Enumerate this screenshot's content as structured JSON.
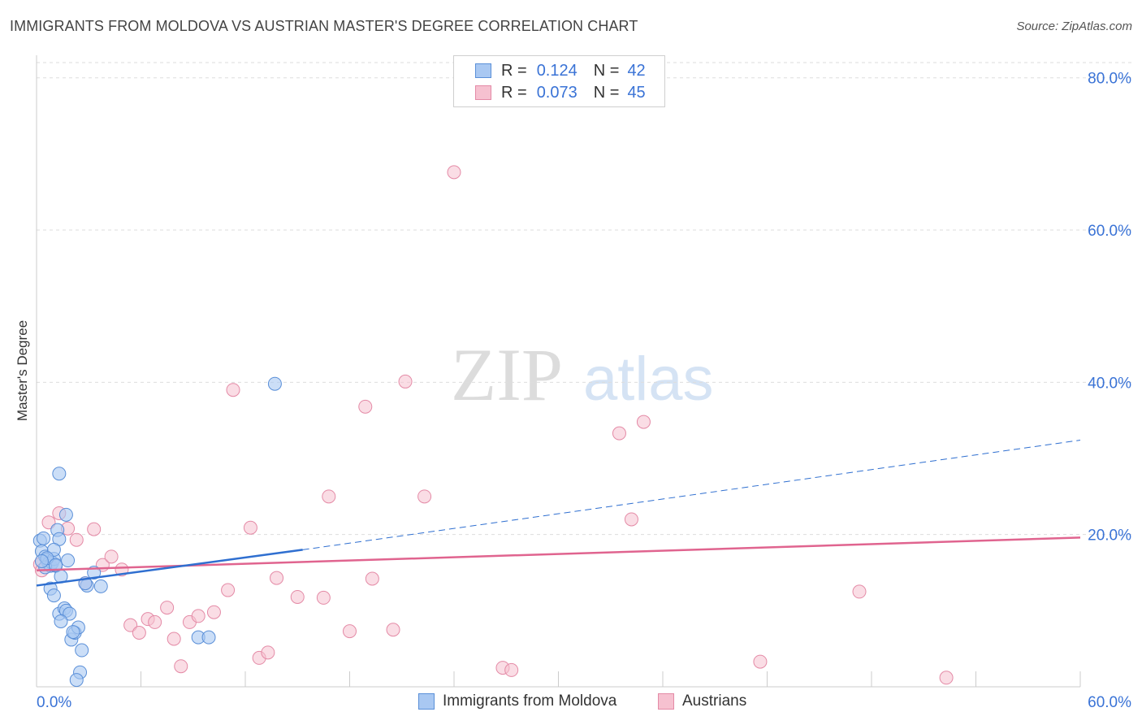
{
  "header": {
    "title": "IMMIGRANTS FROM MOLDOVA VS AUSTRIAN MASTER'S DEGREE CORRELATION CHART",
    "source": "Source: ZipAtlas.com"
  },
  "legend": {
    "rows": [
      {
        "r_label": "R =",
        "r_value": "0.124",
        "n_label": "N =",
        "n_value": "42"
      },
      {
        "r_label": "R =",
        "r_value": "0.073",
        "n_label": "N =",
        "n_value": "45"
      }
    ]
  },
  "bottom_legend": {
    "items": [
      {
        "label": "Immigrants from Moldova"
      },
      {
        "label": "Austrians"
      }
    ]
  },
  "watermark": {
    "zip": "ZIP",
    "atlas": "atlas"
  },
  "colors": {
    "blue_fill": "#a9c8f2",
    "blue_stroke": "#5a8fd8",
    "blue_line": "#2f6fd0",
    "pink_fill": "#f6c1d0",
    "pink_stroke": "#e48aa6",
    "pink_line": "#e0648f",
    "axis_text": "#3a73d6"
  },
  "chart_data": {
    "type": "scatter",
    "title": "IMMIGRANTS FROM MOLDOVA VS AUSTRIAN MASTER'S DEGREE CORRELATION CHART",
    "xlabel": "",
    "ylabel": "Master's Degree",
    "xlim": [
      0,
      60
    ],
    "ylim": [
      0,
      82
    ],
    "x_tick_labels": [
      "0.0%",
      "60.0%"
    ],
    "y_ticks": [
      20,
      40,
      60,
      80
    ],
    "y_tick_labels": [
      "20.0%",
      "40.0%",
      "60.0%",
      "80.0%"
    ],
    "grid": true,
    "legend_position": "top-center",
    "series": [
      {
        "name": "Immigrants from Moldova",
        "R": 0.124,
        "N": 42,
        "points": [
          [
            0.2,
            19.2
          ],
          [
            0.4,
            19.5
          ],
          [
            0.3,
            17.8
          ],
          [
            0.5,
            17.1
          ],
          [
            0.6,
            16.7
          ],
          [
            0.7,
            16.2
          ],
          [
            0.8,
            15.9
          ],
          [
            0.9,
            16.3
          ],
          [
            1.0,
            16.8
          ],
          [
            1.1,
            15.9
          ],
          [
            1.2,
            20.6
          ],
          [
            1.3,
            19.4
          ],
          [
            1.0,
            18.0
          ],
          [
            1.4,
            14.5
          ],
          [
            1.7,
            22.6
          ],
          [
            1.8,
            16.6
          ],
          [
            1.3,
            28.0
          ],
          [
            0.8,
            12.9
          ],
          [
            1.0,
            12.0
          ],
          [
            1.3,
            9.6
          ],
          [
            1.6,
            10.3
          ],
          [
            1.7,
            10.0
          ],
          [
            1.9,
            9.6
          ],
          [
            1.4,
            8.6
          ],
          [
            2.0,
            6.2
          ],
          [
            2.2,
            7.1
          ],
          [
            2.4,
            7.8
          ],
          [
            2.1,
            7.2
          ],
          [
            2.9,
            13.3
          ],
          [
            3.3,
            15.0
          ],
          [
            3.7,
            13.2
          ],
          [
            2.6,
            4.8
          ],
          [
            2.5,
            1.9
          ],
          [
            2.3,
            0.9
          ],
          [
            9.3,
            6.5
          ],
          [
            9.9,
            6.5
          ],
          [
            13.7,
            39.8
          ],
          [
            0.5,
            15.7
          ],
          [
            0.6,
            16.9
          ],
          [
            1.1,
            16.0
          ],
          [
            2.8,
            13.6
          ],
          [
            0.3,
            16.5
          ]
        ],
        "trend_solid": [
          [
            0,
            13.3
          ],
          [
            15.3,
            18.0
          ]
        ],
        "trend_dashed": [
          [
            15.3,
            18.0
          ],
          [
            60,
            32.4
          ]
        ]
      },
      {
        "name": "Austrians",
        "R": 0.073,
        "N": 45,
        "points": [
          [
            0.2,
            16.1
          ],
          [
            0.3,
            15.3
          ],
          [
            0.7,
            21.6
          ],
          [
            1.3,
            22.8
          ],
          [
            1.8,
            20.8
          ],
          [
            2.3,
            19.3
          ],
          [
            3.3,
            20.7
          ],
          [
            2.8,
            13.6
          ],
          [
            3.8,
            16.0
          ],
          [
            4.3,
            17.1
          ],
          [
            4.9,
            15.4
          ],
          [
            5.4,
            8.1
          ],
          [
            5.9,
            7.1
          ],
          [
            6.4,
            8.9
          ],
          [
            6.8,
            8.5
          ],
          [
            7.5,
            10.4
          ],
          [
            7.9,
            6.3
          ],
          [
            8.3,
            2.7
          ],
          [
            8.8,
            8.5
          ],
          [
            9.3,
            9.3
          ],
          [
            10.2,
            9.8
          ],
          [
            11.0,
            12.7
          ],
          [
            11.3,
            39.0
          ],
          [
            12.3,
            20.9
          ],
          [
            12.8,
            3.8
          ],
          [
            13.3,
            4.5
          ],
          [
            13.8,
            14.3
          ],
          [
            15.0,
            11.8
          ],
          [
            16.5,
            11.7
          ],
          [
            16.8,
            25.0
          ],
          [
            18.0,
            7.3
          ],
          [
            18.9,
            36.8
          ],
          [
            19.3,
            14.2
          ],
          [
            20.5,
            7.5
          ],
          [
            21.2,
            40.1
          ],
          [
            22.3,
            25.0
          ],
          [
            24.0,
            67.6
          ],
          [
            26.8,
            2.5
          ],
          [
            27.3,
            2.2
          ],
          [
            33.5,
            33.3
          ],
          [
            34.2,
            22.0
          ],
          [
            34.9,
            34.8
          ],
          [
            41.6,
            3.3
          ],
          [
            47.3,
            12.5
          ],
          [
            52.3,
            1.2
          ]
        ],
        "trend_solid": [
          [
            0,
            15.3
          ],
          [
            60,
            19.6
          ]
        ]
      }
    ]
  }
}
